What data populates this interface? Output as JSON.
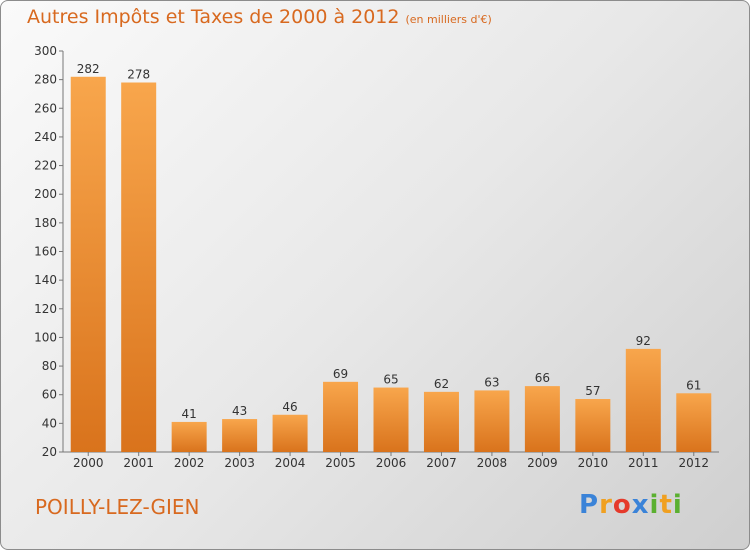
{
  "title": "Autres Impôts et Taxes de 2000 à 2012",
  "title_unit": "(en milliers d'€)",
  "city": "POILLY-LEZ-GIEN",
  "logo": "Proxiti",
  "colors": {
    "bar_light": "#f8a64c",
    "bar_dark": "#d9731c",
    "accent": "#d8691f"
  },
  "chart_data": {
    "type": "bar",
    "categories": [
      "2000",
      "2001",
      "2002",
      "2003",
      "2004",
      "2005",
      "2006",
      "2007",
      "2008",
      "2009",
      "2010",
      "2011",
      "2012"
    ],
    "values": [
      282,
      278,
      41,
      43,
      46,
      69,
      65,
      62,
      63,
      66,
      57,
      92,
      61
    ],
    "ylim": [
      20,
      300
    ],
    "yticks": [
      20,
      40,
      60,
      80,
      100,
      120,
      140,
      160,
      180,
      200,
      220,
      240,
      260,
      280,
      300
    ],
    "grid": false
  }
}
